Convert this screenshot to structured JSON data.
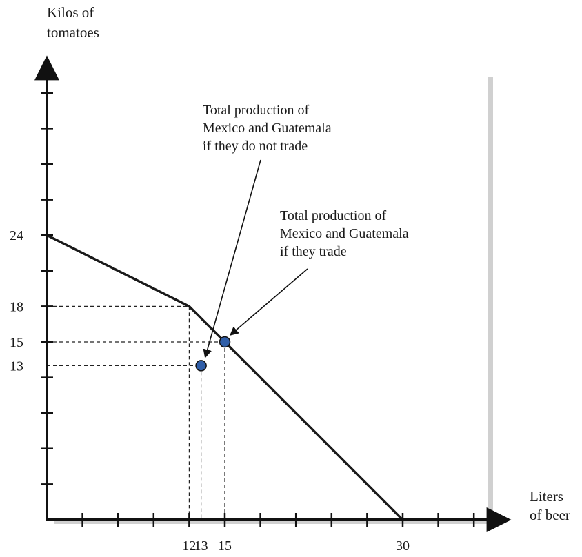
{
  "chart_data": {
    "type": "line",
    "xlabel_lines": [
      "Liters",
      "of beer"
    ],
    "ylabel_lines": [
      "Kilos of",
      "tomatoes"
    ],
    "xlim": [
      0,
      38
    ],
    "ylim": [
      0,
      40
    ],
    "x_tick_step": 3,
    "y_tick_step": 3,
    "x_tick_labels": [
      {
        "value": 12,
        "label": "12"
      },
      {
        "value": 13,
        "label": "13"
      },
      {
        "value": 15,
        "label": "15"
      },
      {
        "value": 30,
        "label": "30"
      }
    ],
    "y_tick_labels": [
      {
        "value": 24,
        "label": "24"
      },
      {
        "value": 18,
        "label": "18"
      },
      {
        "value": 15,
        "label": "15"
      },
      {
        "value": 13,
        "label": "13"
      }
    ],
    "series": [
      {
        "points": [
          [
            0,
            24
          ],
          [
            12,
            18
          ],
          [
            30,
            0
          ]
        ]
      }
    ],
    "reference_lines": [
      {
        "x": 12,
        "y": 18
      },
      {
        "x": 15,
        "y": 15
      },
      {
        "x": 13,
        "y": 13
      }
    ],
    "points": [
      {
        "x": 15,
        "y": 15,
        "note": "trade"
      },
      {
        "x": 13,
        "y": 13,
        "note": "no-trade"
      }
    ],
    "annotations": [
      {
        "lines": [
          "Total production of",
          "Mexico and Guatemala",
          "if they do not trade"
        ],
        "target": [
          13,
          13
        ]
      },
      {
        "lines": [
          "Total production of",
          "Mexico and Guatemala",
          "if they trade"
        ],
        "target": [
          15,
          15
        ]
      }
    ],
    "grid": false,
    "legend": "none",
    "colors": {
      "line": "#1a1a1a",
      "point_fill": "#2f5ea8",
      "point_stroke": "#111111",
      "panel_shadow": "#cfcfcf"
    }
  }
}
